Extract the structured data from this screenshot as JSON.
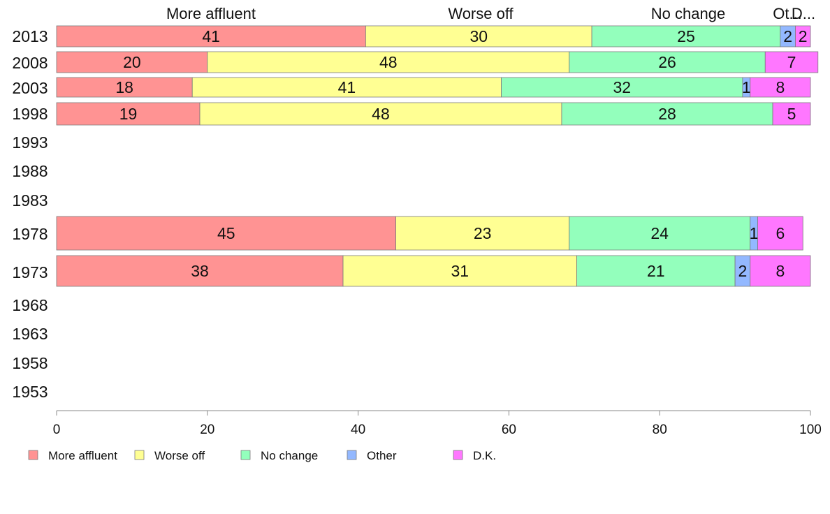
{
  "chart_data": {
    "type": "bar",
    "orientation": "horizontal",
    "stacked": true,
    "categories": [
      "2013",
      "2008",
      "2003",
      "1998",
      "1993",
      "1988",
      "1983",
      "1978",
      "1973",
      "1968",
      "1963",
      "1958",
      "1953"
    ],
    "series": [
      {
        "name": "More affluent",
        "color": "#ff9393",
        "values": [
          41,
          20,
          18,
          19,
          null,
          null,
          null,
          45,
          38,
          null,
          null,
          null,
          null
        ]
      },
      {
        "name": "Worse off",
        "color": "#ffff93",
        "values": [
          30,
          48,
          41,
          48,
          null,
          null,
          null,
          23,
          31,
          null,
          null,
          null,
          null
        ]
      },
      {
        "name": "No change",
        "color": "#93ffbc",
        "values": [
          25,
          26,
          32,
          28,
          null,
          null,
          null,
          24,
          21,
          null,
          null,
          null,
          null
        ]
      },
      {
        "name": "Other",
        "color": "#93b8ff",
        "values": [
          2,
          0,
          1,
          0,
          null,
          null,
          null,
          1,
          2,
          null,
          null,
          null,
          null
        ]
      },
      {
        "name": "D.K.",
        "color": "#ff77ff",
        "values": [
          2,
          7,
          8,
          5,
          null,
          null,
          null,
          6,
          8,
          null,
          null,
          null,
          null
        ]
      }
    ],
    "column_headers": [
      "More affluent",
      "Worse off",
      "No change",
      "Ot...",
      "D..."
    ],
    "x_ticks": [
      "0",
      "20",
      "40",
      "60",
      "80",
      "100"
    ],
    "xlim": [
      0,
      100
    ],
    "grid": false,
    "legend": {
      "placement": "bottom-left",
      "entries": [
        "More affluent",
        "Worse off",
        "No change",
        "Other",
        "D.K."
      ]
    }
  }
}
